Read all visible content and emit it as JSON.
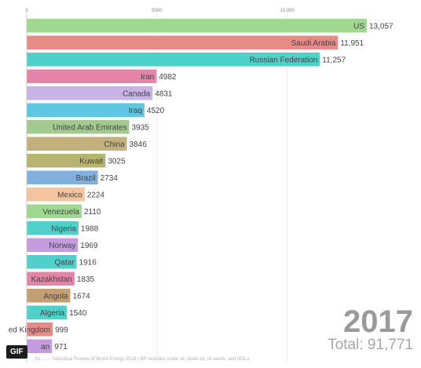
{
  "chart_data": {
    "type": "bar",
    "orientation": "horizontal",
    "categories": [
      "US",
      "Saudi Arabia",
      "Russian Federation",
      "Iran",
      "Canada",
      "Iraq",
      "United Arab Emirates",
      "China",
      "Kuwait",
      "Brazil",
      "Mexico",
      "Venezuela",
      "Nigeria",
      "Norway",
      "Qatar",
      "Kazakhstan",
      "Angola",
      "Algeria",
      "ed Kingdom",
      "an"
    ],
    "values": [
      13057,
      11951,
      11257,
      4982,
      4831,
      4520,
      3935,
      3846,
      3025,
      2734,
      2224,
      2110,
      1988,
      1969,
      1916,
      1835,
      1674,
      1540,
      999,
      971
    ],
    "value_labels": [
      "13,057",
      "11,951",
      "11,257",
      "4982",
      "4831",
      "4520",
      "3935",
      "3846",
      "3025",
      "2734",
      "2224",
      "2110",
      "1988",
      "1969",
      "1916",
      "1835",
      "1674",
      "1540",
      "999",
      "971"
    ],
    "colors": [
      "#9fd88f",
      "#e88b86",
      "#4fd0c8",
      "#e384a8",
      "#c8b3e6",
      "#5cc6e3",
      "#a3ca8e",
      "#c2b07d",
      "#b6b46f",
      "#7fb0e0",
      "#f5c49e",
      "#9fd88f",
      "#4fd0c8",
      "#c59be0",
      "#4fd0c8",
      "#e384a8",
      "#c2a070",
      "#4fd0c8",
      "#e88b86",
      "#c59be0"
    ],
    "x_ticks": [
      0,
      5000,
      10000
    ],
    "x_tick_labels": [
      "0",
      "5000",
      "10,000"
    ],
    "xlim": [
      0,
      13057
    ],
    "grid": true,
    "title": "",
    "xlabel": "",
    "ylabel": ""
  },
  "overlay": {
    "year": "2017",
    "total": "Total: 91,771",
    "gif_badge": "GIF",
    "source": "So… … Statistical Review of World Energy 2018 • BP includes crude oil, shale oil, oil sands, and NGLs"
  }
}
